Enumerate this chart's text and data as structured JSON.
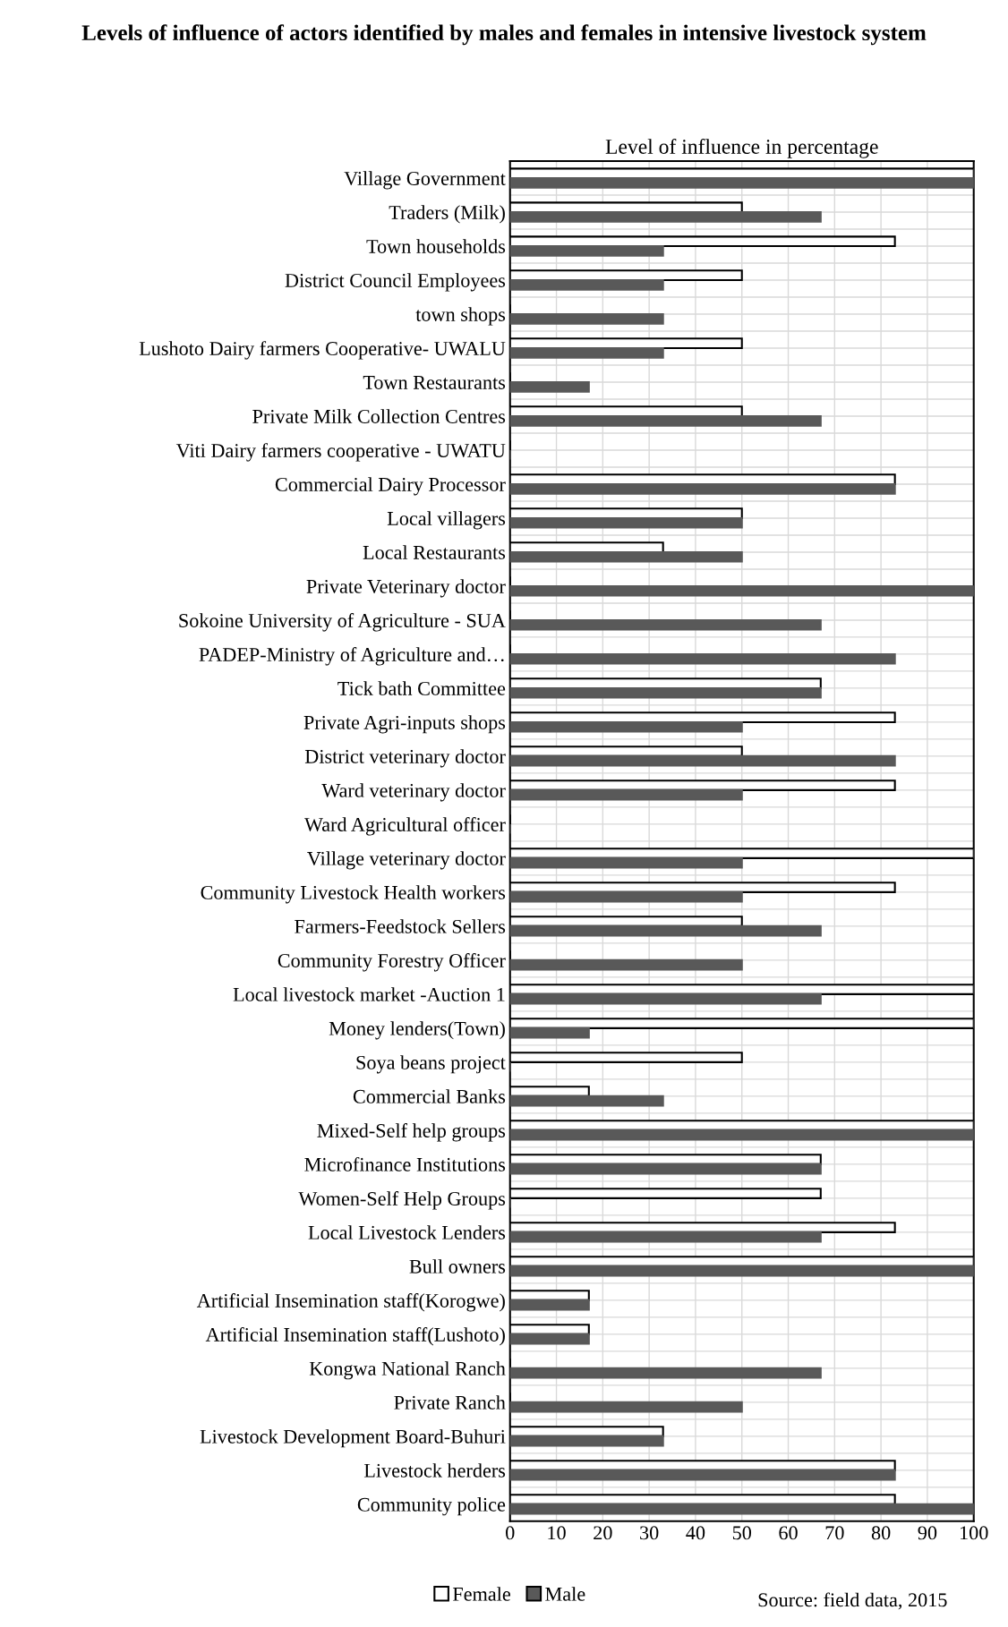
{
  "chart_data": {
    "type": "bar",
    "orientation": "horizontal",
    "title": "Levels of influence of actors identified by males and females in intensive livestock system",
    "xlabel": "Level of influence in percentage",
    "categories": [
      "Village Government",
      "Traders (Milk)",
      "Town households",
      "District Council Employees",
      "town shops",
      "Lushoto Dairy farmers Cooperative- UWALU",
      "Town Restaurants",
      "Private Milk Collection Centres",
      "Viti Dairy farmers cooperative - UWATU",
      "Commercial Dairy Processor",
      "Local villagers",
      "Local Restaurants",
      "Private Veterinary doctor",
      "Sokoine University of Agriculture - SUA",
      "PADEP-Ministry of Agriculture and…",
      "Tick bath Committee",
      "Private Agri-inputs shops",
      "District veterinary doctor",
      "Ward veterinary doctor",
      "Ward Agricultural officer",
      "Village veterinary doctor",
      "Community Livestock Health workers",
      "Farmers-Feedstock Sellers",
      "Community Forestry Officer",
      "Local livestock market -Auction 1",
      "Money lenders(Town)",
      "Soya beans project",
      "Commercial Banks",
      "Mixed-Self help groups",
      "Microfinance Institutions",
      "Women-Self Help Groups",
      "Local Livestock Lenders",
      "Bull owners",
      "Artificial Insemination staff(Korogwe)",
      "Artificial Insemination staff(Lushoto)",
      "Kongwa National Ranch",
      "Private Ranch",
      "Livestock Development Board-Buhuri",
      "Livestock herders",
      "Community police"
    ],
    "series": [
      {
        "name": "Female",
        "color": "#ffffff",
        "values": [
          100,
          50,
          83,
          50,
          0,
          50,
          0,
          50,
          0,
          83,
          50,
          33,
          0,
          0,
          0,
          67,
          83,
          50,
          83,
          0,
          100,
          83,
          50,
          0,
          100,
          100,
          50,
          17,
          100,
          67,
          67,
          83,
          100,
          17,
          17,
          0,
          0,
          33,
          83,
          83
        ]
      },
      {
        "name": "Male",
        "color": "#595959",
        "values": [
          100,
          67,
          33,
          33,
          33,
          33,
          17,
          67,
          0,
          83,
          50,
          50,
          100,
          67,
          83,
          67,
          50,
          83,
          50,
          0,
          50,
          50,
          67,
          50,
          67,
          17,
          0,
          33,
          100,
          67,
          0,
          67,
          100,
          17,
          17,
          67,
          50,
          33,
          83,
          100
        ]
      }
    ],
    "xlim": [
      0,
      100
    ],
    "xticks": [
      0,
      10,
      20,
      30,
      40,
      50,
      60,
      70,
      80,
      90,
      100
    ],
    "grid": true,
    "legend": "bottom",
    "annotations": [
      "Source: field data, 2015"
    ]
  }
}
